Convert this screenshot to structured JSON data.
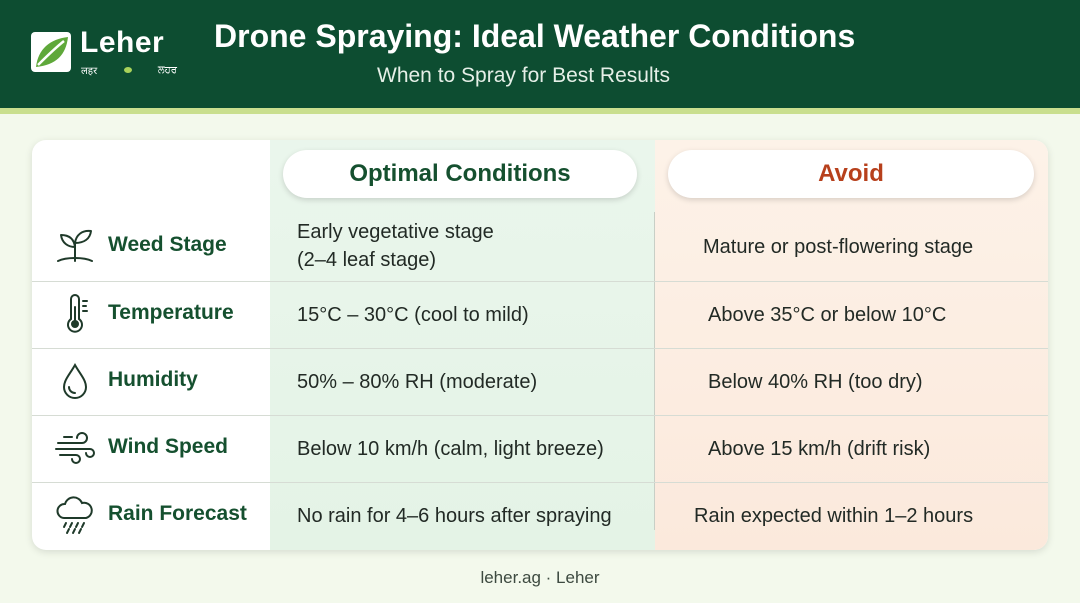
{
  "brand": {
    "name": "Leher",
    "sub_left": "लहर",
    "sub_right": "ਲਹਰ"
  },
  "header": {
    "title": "Drone Spraying: Ideal Weather Conditions",
    "subtitle": "When to Spray for Best Results"
  },
  "columns": {
    "optimal": "Optimal Conditions",
    "avoid": "Avoid"
  },
  "rows": [
    {
      "icon": "seedling-icon",
      "label": "Weed Stage",
      "optimal_line1": "Early vegetative stage",
      "optimal_line2": "(2–4 leaf stage)",
      "avoid": "Mature or post-flowering stage"
    },
    {
      "icon": "thermometer-icon",
      "label": "Temperature",
      "optimal_line1": "15°C – 30°C (cool to mild)",
      "avoid": "Above 35°C or below 10°C"
    },
    {
      "icon": "water-drop-icon",
      "label": "Humidity",
      "optimal_line1": "50% – 80% RH (moderate)",
      "avoid": "Below 40% RH (too dry)"
    },
    {
      "icon": "wind-icon",
      "label": "Wind Speed",
      "optimal_line1": "Below 10 km/h (calm, light breeze)",
      "avoid": "Above 15 km/h (drift risk)"
    },
    {
      "icon": "rain-cloud-icon",
      "label": "Rain Forecast",
      "optimal_line1": "No rain for 4–6 hours after spraying",
      "avoid": "Rain expected within 1–2 hours"
    }
  ],
  "footer": "leher.ag · Leher",
  "colors": {
    "header_bg": "#0d4d31",
    "accent": "#c9df8e",
    "optimal_text": "#15502f",
    "avoid_text": "#b7401c"
  }
}
